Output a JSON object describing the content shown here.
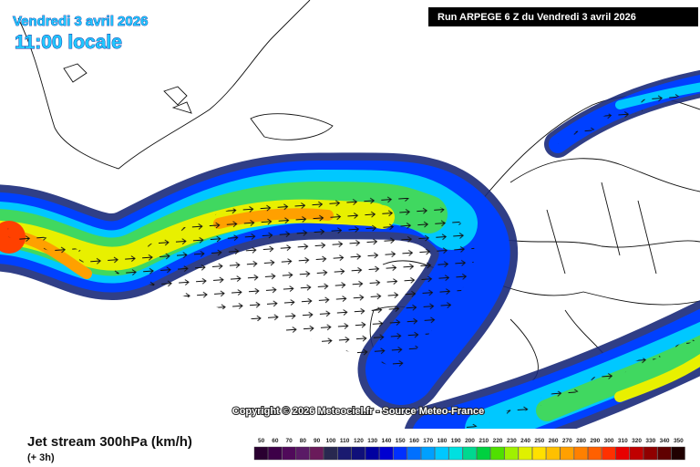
{
  "header": {
    "date": "Vendredi 3 avril 2026",
    "time": "11:00 locale"
  },
  "run": "Run ARPEGE 6 Z du Vendredi 3 avril 2026",
  "copyright": "Copyright © 2026 Meteociel.fr - Source Meteo-France",
  "legend": {
    "title": "Jet stream 300hPa (km/h)",
    "subtitle": "(+ 3h)",
    "levels": [
      50,
      60,
      70,
      80,
      90,
      100,
      110,
      120,
      130,
      140,
      150,
      160,
      170,
      180,
      190,
      200,
      210,
      220,
      230,
      240,
      250,
      260,
      270,
      280,
      290,
      300,
      310,
      320,
      330,
      340,
      350
    ],
    "colors": [
      "#2a0030",
      "#3d0048",
      "#500a5a",
      "#5a1a66",
      "#6a1a5a",
      "#282850",
      "#1a1a70",
      "#10107a",
      "#0000a0",
      "#0000d0",
      "#0030ff",
      "#0070ff",
      "#00a0ff",
      "#00c8ff",
      "#00e0e0",
      "#00d890",
      "#00d040",
      "#50e000",
      "#a0f000",
      "#e0f000",
      "#ffe000",
      "#ffc000",
      "#ffa000",
      "#ff8000",
      "#ff6000",
      "#ff3000",
      "#e80000",
      "#c00000",
      "#900000",
      "#600000",
      "#200000"
    ]
  }
}
